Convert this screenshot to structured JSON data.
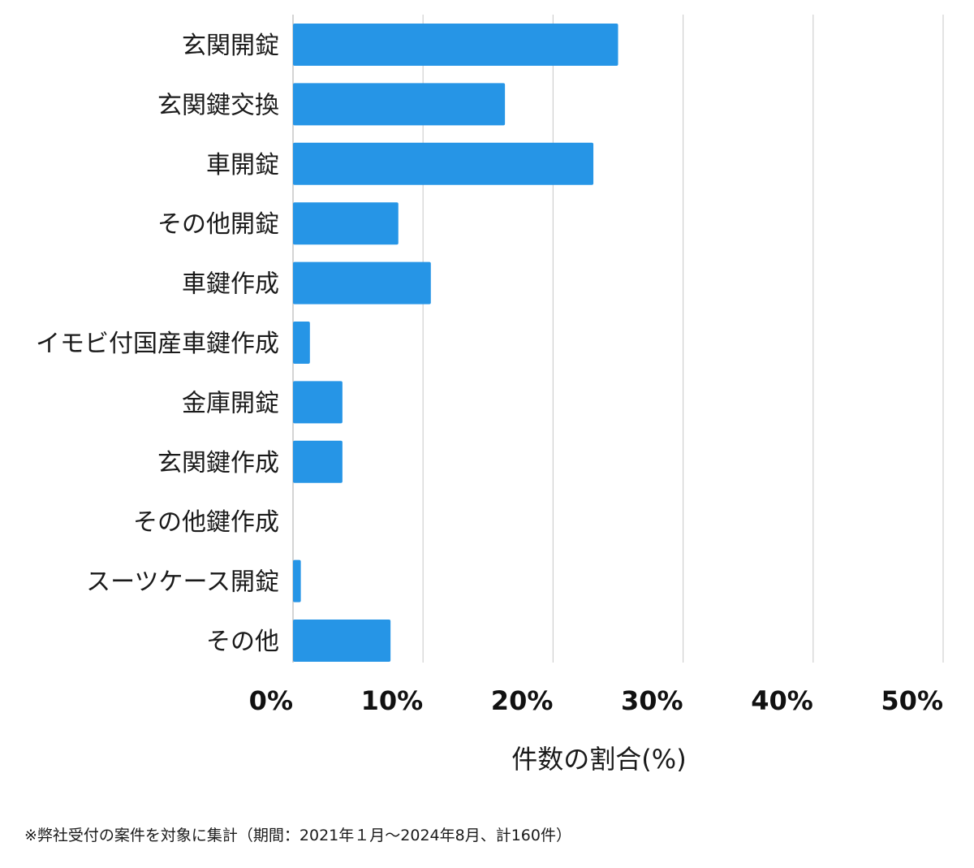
{
  "chart_data": {
    "type": "bar",
    "orientation": "horizontal",
    "categories": [
      "玄関開錠",
      "玄関鍵交換",
      "車開錠",
      "その他開錠",
      "車鍵作成",
      "イモビ付国産車鍵作成",
      "金庫開錠",
      "玄関鍵作成",
      "その他鍵作成",
      "スーツケース開錠",
      "その他"
    ],
    "values": [
      25,
      16.3,
      23.1,
      8.1,
      10.6,
      1.3,
      3.8,
      3.8,
      0,
      0.6,
      7.5
    ],
    "xlabel": "件数の割合(%)",
    "ylabel": "",
    "xlim": [
      0,
      50
    ],
    "xticks": [
      "0%",
      "10%",
      "20%",
      "30%",
      "40%",
      "50%"
    ],
    "grid": "vertical",
    "bar_color": "#2695e6",
    "grid_color": "#d0d0d0"
  },
  "footnote": "※弊社受付の案件を対象に集計（期間：2021年１月〜2024年8月、計160件）"
}
